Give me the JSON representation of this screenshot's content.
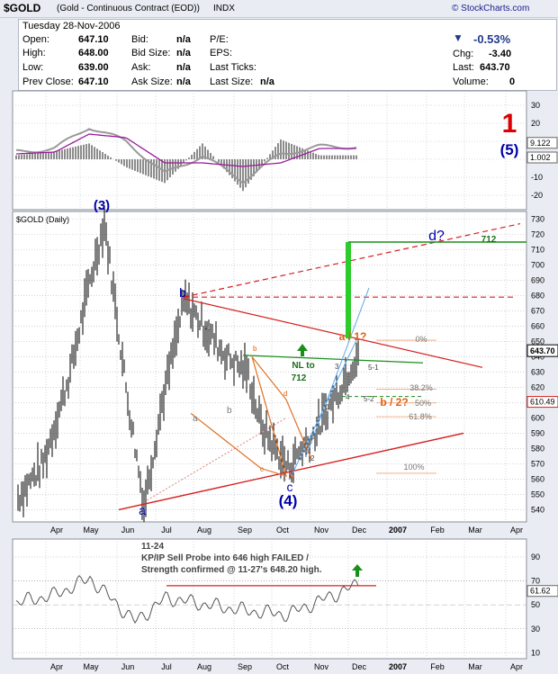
{
  "header": {
    "symbol": "$GOLD",
    "name": "(Gold - Continuous Contract (EOD))",
    "exchange": "INDX",
    "copyright": "© StockCharts.com",
    "date": "Tuesday 28-Nov-2006",
    "open_label": "Open:",
    "open": "647.10",
    "high_label": "High:",
    "high": "648.00",
    "low_label": "Low:",
    "low": "639.00",
    "prev_label": "Prev Close:",
    "prev": "647.10",
    "bid_label": "Bid:",
    "bid": "n/a",
    "bidsize_label": "Bid Size:",
    "bidsize": "n/a",
    "ask_label": "Ask:",
    "ask": "n/a",
    "asksize_label": "Ask Size:",
    "asksize": "n/a",
    "pe_label": "P/E:",
    "eps_label": "EPS:",
    "lastticks_label": "Last Ticks:",
    "lastsize_label": "Last Size:",
    "lastsize": "n/a",
    "change_pct": "-0.53%",
    "chg_label": "Chg:",
    "chg": "-3.40",
    "last_label": "Last:",
    "last": "643.70",
    "volume_label": "Volume:",
    "volume": "0"
  },
  "colors": {
    "background": "#e9edf3",
    "grid": "#b4b8c4",
    "price": "#000000",
    "wave_blue": "#0000aa",
    "wave_red": "#dd0000",
    "orange": "#e06010",
    "green": "#22bb22"
  },
  "chart_data": [
    {
      "type": "line",
      "panel": "MACD histogram and oscillator (upper indicator)",
      "ylim": [
        -28,
        38
      ],
      "y_ticks": [
        "30",
        "20",
        "10",
        "0",
        "-10",
        "-20"
      ],
      "value_labels": [
        "9.122",
        "1.002"
      ],
      "x": [
        "Mar",
        "Apr",
        "May",
        "Jun",
        "Jul",
        "Aug",
        "Sep",
        "Oct",
        "Nov"
      ],
      "series": [
        {
          "values": [
            4,
            6,
            18,
            10,
            -8,
            2,
            -12,
            3,
            7
          ]
        },
        {
          "values": [
            3,
            4,
            14,
            12,
            -2,
            -2,
            -4,
            -2,
            6
          ]
        }
      ],
      "annotations": [
        "1",
        "(5)"
      ]
    },
    {
      "type": "line",
      "panel": "$GOLD (Daily) price",
      "title": "$GOLD (Daily)",
      "ylim": [
        532,
        735
      ],
      "y_ticks": [
        "730",
        "720",
        "710",
        "700",
        "690",
        "680",
        "670",
        "660",
        "650",
        "640",
        "630",
        "620",
        "610",
        "600",
        "590",
        "580",
        "570",
        "560",
        "550",
        "540"
      ],
      "x_ticks": [
        "Apr",
        "May",
        "Jun",
        "Jul",
        "Aug",
        "Sep",
        "Oct",
        "Nov",
        "Dec",
        "2007",
        "Feb",
        "Mar",
        "Apr"
      ],
      "last_label": "643.70",
      "right_marker": "610.49",
      "x": [
        "Mar",
        "Apr",
        "Apr",
        "May",
        "May",
        "Jun",
        "Jun",
        "Jul",
        "Jul",
        "Aug",
        "Aug",
        "Sep",
        "Sep",
        "Oct",
        "Oct",
        "Nov",
        "Nov",
        "Nov"
      ],
      "values": [
        548,
        570,
        630,
        690,
        728,
        620,
        543,
        610,
        677,
        655,
        640,
        630,
        595,
        567,
        576,
        590,
        628,
        643
      ],
      "annotations": [
        {
          "text": "(3)",
          "x": "May",
          "y": 730
        },
        {
          "text": "b",
          "x": "Jul",
          "y": 679
        },
        {
          "text": "a",
          "x": "Jun",
          "y": 537
        },
        {
          "text": "(4)",
          "x": "Oct",
          "y": 550
        },
        {
          "text": "c",
          "x": "Oct",
          "y": 558
        },
        {
          "text": "d?",
          "x": "Jan",
          "y": 718
        },
        {
          "text": "712",
          "x": "Jan",
          "y": 712
        },
        {
          "text": "NL to",
          "x": "Oct",
          "y": 633
        },
        {
          "text": "712",
          "x": "Oct",
          "y": 625
        },
        {
          "text": "a / 1?",
          "x": "Nov",
          "y": 652
        },
        {
          "text": "b / 2?",
          "x": "Dec",
          "y": 610
        },
        {
          "text": "0%",
          "x": "Dec",
          "y": 652
        },
        {
          "text": "38.2%",
          "x": "Dec",
          "y": 620
        },
        {
          "text": "50%",
          "x": "Dec",
          "y": 611
        },
        {
          "text": "61.8%",
          "x": "Dec",
          "y": 602
        },
        {
          "text": "100%",
          "x": "Dec",
          "y": 565
        }
      ]
    },
    {
      "type": "line",
      "panel": "RSI (lower indicator)",
      "ylim": [
        5,
        105
      ],
      "y_ticks": [
        "90",
        "70",
        "50",
        "30",
        "10"
      ],
      "x_ticks": [
        "Apr",
        "May",
        "Jun",
        "Jul",
        "Aug",
        "Sep",
        "Oct",
        "Nov",
        "Dec",
        "2007",
        "Feb",
        "Mar",
        "Apr"
      ],
      "value_label": "61.62",
      "x": [
        "Mar",
        "Apr",
        "May",
        "Jun",
        "Jul",
        "Aug",
        "Sep",
        "Oct",
        "Nov",
        "Nov"
      ],
      "values": [
        52,
        58,
        72,
        36,
        56,
        50,
        45,
        42,
        58,
        67
      ],
      "annotation": {
        "date": "11-24",
        "line1": "KP/IP Sell Probe into 646 high FAILED /",
        "line2": "Strength confirmed @ 11-27's 648.20 high."
      }
    }
  ]
}
